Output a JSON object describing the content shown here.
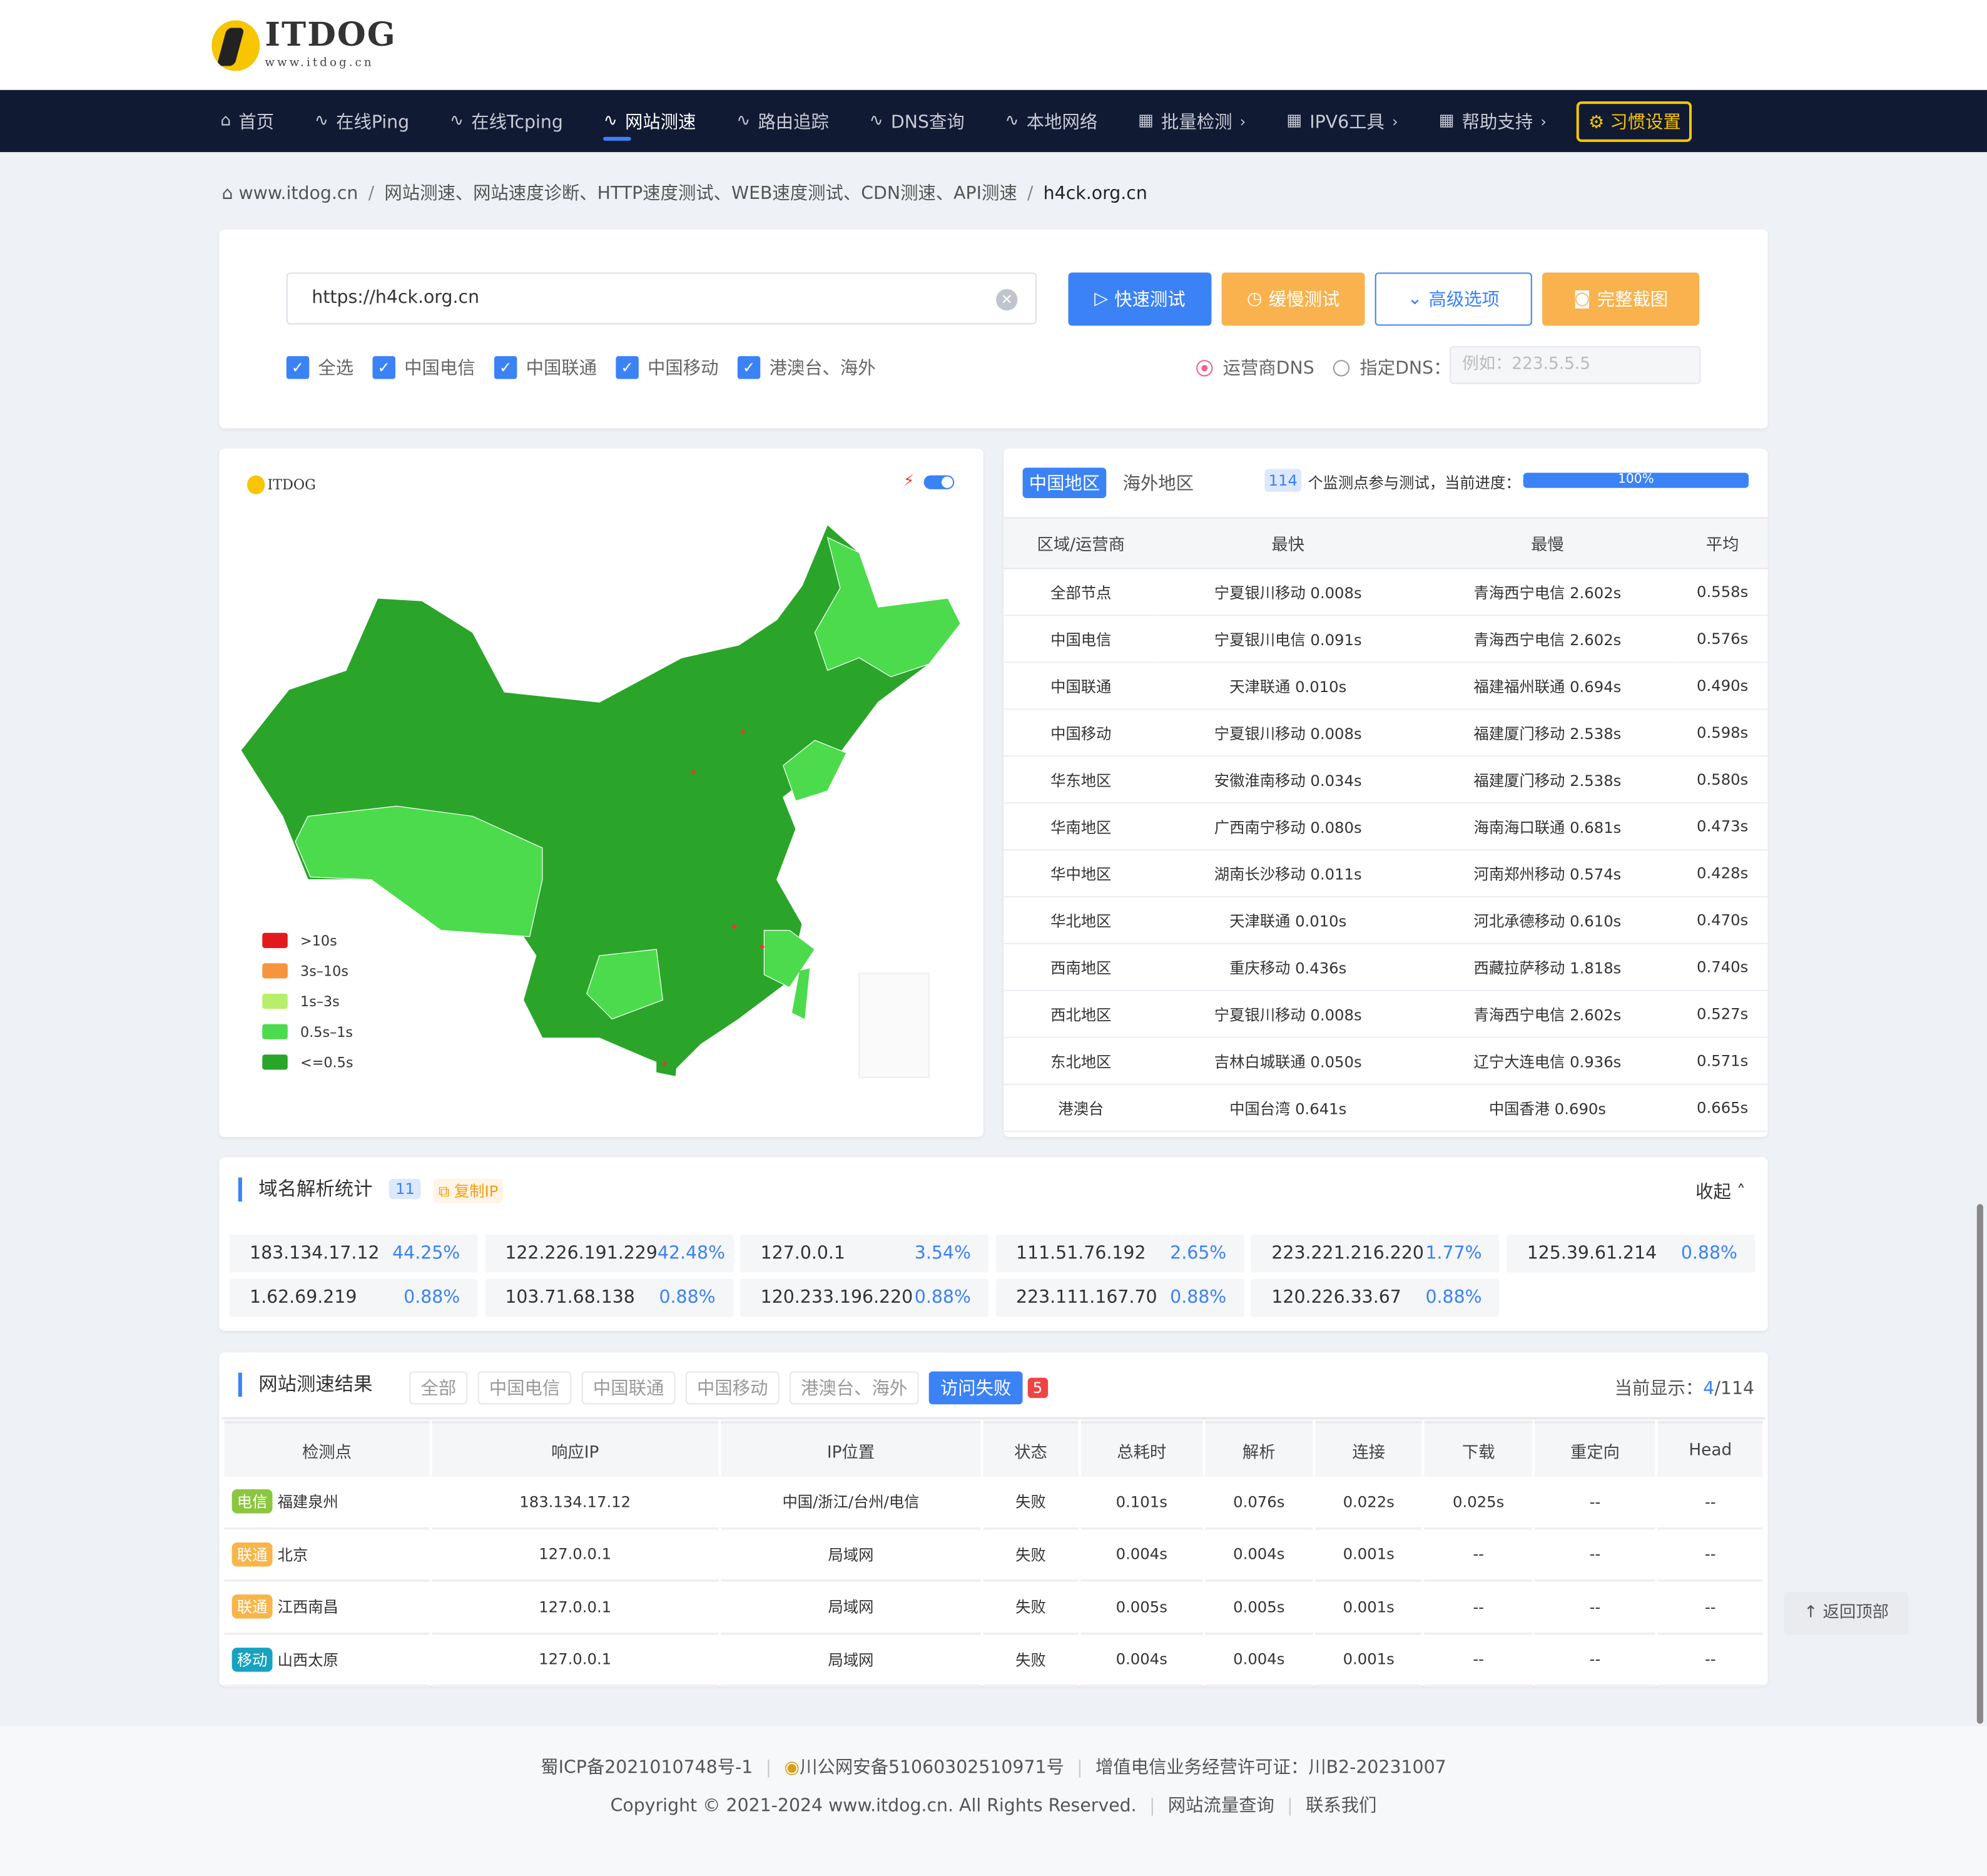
{
  "logo": {
    "text": "ITDOG",
    "sub": "www.itdog.cn"
  },
  "nav": {
    "items": [
      {
        "label": "首页",
        "icon": "home-icon"
      },
      {
        "label": "在线Ping",
        "icon": "pulse-icon"
      },
      {
        "label": "在线Tcping",
        "icon": "pulse-icon"
      },
      {
        "label": "网站测速",
        "icon": "pulse-icon",
        "active": true
      },
      {
        "label": "路由追踪",
        "icon": "pulse-icon"
      },
      {
        "label": "DNS查询",
        "icon": "pulse-icon"
      },
      {
        "label": "本地网络",
        "icon": "pulse-icon"
      },
      {
        "label": "批量检测",
        "icon": "grid-icon",
        "chevron": true
      },
      {
        "label": "IPV6工具",
        "icon": "grid-icon",
        "chevron": true
      },
      {
        "label": "帮助支持",
        "icon": "grid-icon",
        "chevron": true
      }
    ],
    "habit": "习惯设置"
  },
  "breadcrumb": {
    "home": "www.itdog.cn",
    "middle": "网站测速、网站速度诊断、HTTP速度测试、WEB速度测试、CDN测速、API测速",
    "current": "h4ck.org.cn"
  },
  "search": {
    "value": "https://h4ck.org.cn",
    "buttons": {
      "fast": "快速测试",
      "slow": "缓慢测试",
      "advanced": "高级选项",
      "screenshot": "完整截图"
    },
    "checkboxes": [
      "全选",
      "中国电信",
      "中国联通",
      "中国移动",
      "港澳台、海外"
    ],
    "dns": {
      "isp": "运营商DNS",
      "custom": "指定DNS：",
      "placeholder": "例如：223.5.5.5"
    }
  },
  "map": {
    "legend": [
      {
        "label": ">10s",
        "color": "#e31a1c"
      },
      {
        "label": "3s–10s",
        "color": "#f7943d"
      },
      {
        "label": "1s–3s",
        "color": "#b8ef6a"
      },
      {
        "label": "0.5s–1s",
        "color": "#4cdb4c"
      },
      {
        "label": "<=0.5s",
        "color": "#2aa52a"
      }
    ]
  },
  "stats": {
    "tabs": [
      "中国地区",
      "海外地区"
    ],
    "count": "114",
    "progress_text": "个监测点参与测试，当前进度：",
    "progress": "100%",
    "headers": [
      "区域/运营商",
      "最快",
      "最慢",
      "平均"
    ],
    "rows": [
      [
        "全部节点",
        "宁夏银川移动 0.008s",
        "青海西宁电信 2.602s",
        "0.558s"
      ],
      [
        "中国电信",
        "宁夏银川电信 0.091s",
        "青海西宁电信 2.602s",
        "0.576s"
      ],
      [
        "中国联通",
        "天津联通 0.010s",
        "福建福州联通 0.694s",
        "0.490s"
      ],
      [
        "中国移动",
        "宁夏银川移动 0.008s",
        "福建厦门移动 2.538s",
        "0.598s"
      ],
      [
        "华东地区",
        "安徽淮南移动 0.034s",
        "福建厦门移动 2.538s",
        "0.580s"
      ],
      [
        "华南地区",
        "广西南宁移动 0.080s",
        "海南海口联通 0.681s",
        "0.473s"
      ],
      [
        "华中地区",
        "湖南长沙移动 0.011s",
        "河南郑州移动 0.574s",
        "0.428s"
      ],
      [
        "华北地区",
        "天津联通 0.010s",
        "河北承德移动 0.610s",
        "0.470s"
      ],
      [
        "西南地区",
        "重庆移动 0.436s",
        "西藏拉萨移动 1.818s",
        "0.740s"
      ],
      [
        "西北地区",
        "宁夏银川移动 0.008s",
        "青海西宁电信 2.602s",
        "0.527s"
      ],
      [
        "东北地区",
        "吉林白城联通 0.050s",
        "辽宁大连电信 0.936s",
        "0.571s"
      ],
      [
        "港澳台",
        "中国台湾 0.641s",
        "中国香港 0.690s",
        "0.665s"
      ]
    ]
  },
  "dns_stats": {
    "title": "域名解析统计",
    "count": "11",
    "copy": "复制IP",
    "collapse": "收起",
    "items": [
      [
        "183.134.17.12",
        "44.25%"
      ],
      [
        "122.226.191.229",
        "42.48%"
      ],
      [
        "127.0.0.1",
        "3.54%"
      ],
      [
        "111.51.76.192",
        "2.65%"
      ],
      [
        "223.221.216.220",
        "1.77%"
      ],
      [
        "125.39.61.214",
        "0.88%"
      ],
      [
        "1.62.69.219",
        "0.88%"
      ],
      [
        "103.71.68.138",
        "0.88%"
      ],
      [
        "120.233.196.220",
        "0.88%"
      ],
      [
        "223.111.167.70",
        "0.88%"
      ],
      [
        "120.226.33.67",
        "0.88%"
      ]
    ]
  },
  "results": {
    "title": "网站测速结果",
    "filters": [
      "全部",
      "中国电信",
      "中国联通",
      "中国移动",
      "港澳台、海外"
    ],
    "failed": "访问失败",
    "failed_count": "5",
    "showing_label": "当前显示：",
    "showing": "4",
    "total": "/114",
    "headers": [
      "检测点",
      "响应IP",
      "IP位置",
      "状态",
      "总耗时",
      "解析",
      "连接",
      "下载",
      "重定向",
      "Head"
    ],
    "rows": [
      {
        "isp": "电信",
        "color": "#8cc63f",
        "node": "福建泉州",
        "cells": [
          "183.134.17.12",
          "中国/浙江/台州/电信",
          "失败",
          "0.101s",
          "0.076s",
          "0.022s",
          "0.025s",
          "--",
          "--"
        ]
      },
      {
        "isp": "联通",
        "color": "#f7b54a",
        "node": "北京",
        "cells": [
          "127.0.0.1",
          "局域网",
          "失败",
          "0.004s",
          "0.004s",
          "0.001s",
          "--",
          "--",
          "--"
        ]
      },
      {
        "isp": "联通",
        "color": "#f7b54a",
        "node": "江西南昌",
        "cells": [
          "127.0.0.1",
          "局域网",
          "失败",
          "0.005s",
          "0.005s",
          "0.001s",
          "--",
          "--",
          "--"
        ]
      },
      {
        "isp": "移动",
        "color": "#17a2c0",
        "node": "山西太原",
        "cells": [
          "127.0.0.1",
          "局域网",
          "失败",
          "0.004s",
          "0.004s",
          "0.001s",
          "--",
          "--",
          "--"
        ]
      }
    ]
  },
  "back_top": "返回顶部",
  "footer": {
    "icp": "蜀ICP备2021010748号-1",
    "police": "川公网安备51060302510971号",
    "license": "增值电信业务经营许可证：川B2-20231007",
    "copyright": "Copyright © 2021-2024 www.itdog.cn. All Rights Reserved.",
    "traffic": "网站流量查询",
    "contact": "联系我们"
  }
}
